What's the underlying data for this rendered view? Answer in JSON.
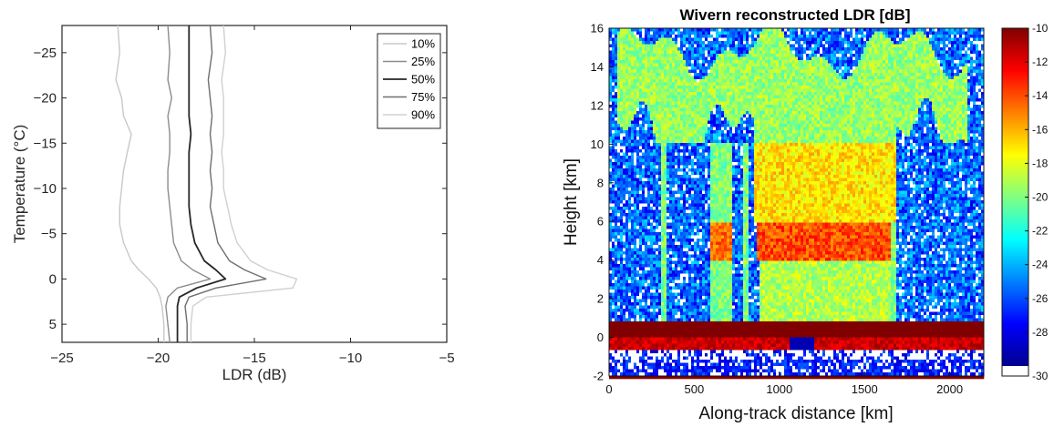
{
  "chart_data": [
    {
      "type": "line",
      "title": "",
      "xlabel": "LDR (dB)",
      "ylabel": "Temperature (°C)",
      "xlim": [
        -25,
        -5
      ],
      "ylim": [
        7,
        -28
      ],
      "y_reversed": true,
      "xticks": [
        -25,
        -20,
        -15,
        -10,
        -5
      ],
      "xtick_labels": [
        "−25",
        "−20",
        "−15",
        "−10",
        "−5"
      ],
      "yticks": [
        -25,
        -20,
        -15,
        -10,
        -5,
        0,
        5
      ],
      "ytick_labels": [
        "−25",
        "−20",
        "−15",
        "−10",
        "−5",
        "0",
        "5"
      ],
      "grid": false,
      "legend_position": "top-right",
      "temperatures": [
        -28,
        -25,
        -22,
        -20,
        -18,
        -16,
        -14,
        -12,
        -10,
        -8,
        -6,
        -4,
        -2,
        -1,
        0,
        1,
        2,
        3,
        5,
        7
      ],
      "series": [
        {
          "name": "10%",
          "color": "#c8c8c8",
          "values": [
            -22.1,
            -22.0,
            -22.2,
            -21.9,
            -21.8,
            -21.4,
            -21.6,
            -21.8,
            -21.9,
            -22.0,
            -22.0,
            -21.8,
            -21.4,
            -21.0,
            -20.5,
            -20.1,
            -19.9,
            -19.8,
            -19.7,
            -19.7
          ]
        },
        {
          "name": "25%",
          "color": "#8c8c8c",
          "values": [
            -19.5,
            -19.4,
            -19.5,
            -19.3,
            -19.5,
            -19.4,
            -19.4,
            -19.5,
            -19.5,
            -19.4,
            -19.3,
            -19.2,
            -18.8,
            -18.2,
            -17.3,
            -19.0,
            -19.5,
            -19.6,
            -19.5,
            -19.4
          ]
        },
        {
          "name": "50%",
          "color": "#262626",
          "values": [
            -18.4,
            -18.4,
            -18.4,
            -18.4,
            -18.4,
            -18.3,
            -18.4,
            -18.4,
            -18.4,
            -18.4,
            -18.3,
            -18.1,
            -17.6,
            -17.0,
            -16.5,
            -18.0,
            -18.9,
            -19.0,
            -19.0,
            -19.0
          ]
        },
        {
          "name": "75%",
          "color": "#6e6e6e",
          "values": [
            -17.3,
            -17.2,
            -17.4,
            -17.3,
            -17.2,
            -17.3,
            -17.2,
            -17.3,
            -17.2,
            -17.3,
            -17.1,
            -16.9,
            -16.3,
            -15.5,
            -14.4,
            -17.0,
            -18.4,
            -18.6,
            -18.5,
            -18.5
          ]
        },
        {
          "name": "90%",
          "color": "#d0d0d0",
          "values": [
            -16.6,
            -16.5,
            -16.7,
            -16.6,
            -16.6,
            -16.6,
            -16.7,
            -16.6,
            -16.6,
            -16.4,
            -16.2,
            -15.9,
            -15.2,
            -14.3,
            -12.8,
            -13.0,
            -17.5,
            -18.2,
            -18.3,
            -18.3
          ]
        }
      ]
    },
    {
      "type": "heatmap",
      "title": "Wivern reconstructed LDR [dB]",
      "xlabel": "Along-track distance [km]",
      "ylabel": "Height [km]",
      "xlim": [
        0,
        2200
      ],
      "ylim": [
        -2,
        16
      ],
      "xticks": [
        0,
        500,
        1000,
        1500,
        2000
      ],
      "yticks": [
        -2,
        0,
        2,
        4,
        6,
        8,
        10,
        12,
        14,
        16
      ],
      "colorbar": {
        "range": [
          -30,
          -10
        ],
        "ticks": [
          -10,
          -12,
          -14,
          -16,
          -18,
          -20,
          -22,
          -24,
          -26,
          -28,
          -30
        ],
        "colormap": "jet",
        "under_color": "#ffffff"
      },
      "regions": [
        {
          "description": "clear-air noise",
          "x": [
            0,
            2200
          ],
          "y": [
            0.8,
            16
          ],
          "ldr": -27
        },
        {
          "description": "upper ice cloud",
          "x": [
            50,
            2100
          ],
          "y": [
            10,
            16
          ],
          "ldr": -19.5
        },
        {
          "description": "deep ice core",
          "x": [
            850,
            1680
          ],
          "y": [
            6,
            10.3
          ],
          "ldr": -17
        },
        {
          "description": "melting layer bright band",
          "x": [
            870,
            1650
          ],
          "y": [
            4,
            6
          ],
          "ldr": -14
        },
        {
          "description": "melting layer left cell",
          "x": [
            590,
            720
          ],
          "y": [
            4,
            6
          ],
          "ldr": -14.5
        },
        {
          "description": "rain below melting layer",
          "x": [
            880,
            1650
          ],
          "y": [
            0.8,
            4
          ],
          "ldr": -19
        },
        {
          "description": "surface clutter band",
          "x": [
            0,
            2200
          ],
          "y": [
            -0.6,
            0
          ],
          "ldr": -10.5
        },
        {
          "description": "below surface",
          "x": [
            0,
            2200
          ],
          "y": [
            -2,
            -0.6
          ],
          "ldr": -28
        }
      ]
    }
  ]
}
